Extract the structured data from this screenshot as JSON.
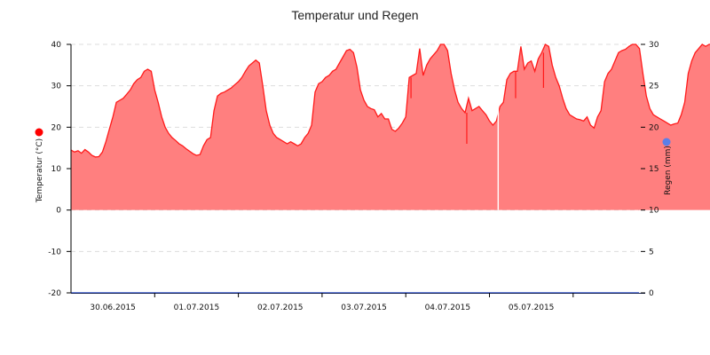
{
  "chart_data": {
    "type": "area",
    "title": "Temperatur und Regen",
    "xlabel": "",
    "x_tick_labels": [
      "30.06.2015",
      "01.07.2015",
      "02.07.2015",
      "03.07.2015",
      "04.07.2015",
      "05.07.2015"
    ],
    "y_left": {
      "label": "Temperatur (°C)",
      "ticks": [
        40,
        30,
        20,
        10,
        0,
        -10,
        -20
      ],
      "range": [
        -20,
        40
      ],
      "marker_color": "#ff0000"
    },
    "y_right": {
      "label": "Regen (mm)",
      "ticks": [
        30,
        25,
        20,
        15,
        10,
        5,
        0
      ],
      "range": [
        0,
        30
      ],
      "marker_color": "#5b7fe8"
    },
    "grid": true,
    "legend": "none",
    "series": [
      {
        "name": "Temperatur",
        "axis": "left",
        "type": "area",
        "line_color": "#ff1a1a",
        "fill_color": "#ff7f7f",
        "x_unit": "hours since 30.06.2015 00:00",
        "points": [
          [
            0,
            14.5
          ],
          [
            1,
            14.0
          ],
          [
            2,
            14.3
          ],
          [
            3,
            13.7
          ],
          [
            4,
            14.6
          ],
          [
            5,
            14.0
          ],
          [
            6,
            13.2
          ],
          [
            7,
            12.8
          ],
          [
            8,
            12.9
          ],
          [
            9,
            14.0
          ],
          [
            10,
            16.5
          ],
          [
            11,
            19.5
          ],
          [
            12,
            22.5
          ],
          [
            13,
            26.0
          ],
          [
            14,
            26.5
          ],
          [
            15,
            27.0
          ],
          [
            16,
            28.0
          ],
          [
            17,
            29.0
          ],
          [
            18,
            30.5
          ],
          [
            19,
            31.5
          ],
          [
            20,
            32.0
          ],
          [
            21,
            33.5
          ],
          [
            22,
            34.0
          ],
          [
            23,
            33.5
          ],
          [
            24,
            29.0
          ],
          [
            25,
            26.0
          ],
          [
            26,
            22.5
          ],
          [
            27,
            20.0
          ],
          [
            28,
            18.5
          ],
          [
            29,
            17.5
          ],
          [
            30,
            16.8
          ],
          [
            31,
            16.0
          ],
          [
            32,
            15.5
          ],
          [
            33,
            14.8
          ],
          [
            34,
            14.2
          ],
          [
            35,
            13.6
          ],
          [
            36,
            13.2
          ],
          [
            37,
            13.4
          ],
          [
            38,
            15.5
          ],
          [
            39,
            17.0
          ],
          [
            40,
            17.5
          ],
          [
            41,
            24.0
          ],
          [
            42,
            27.5
          ],
          [
            43,
            28.2
          ],
          [
            44,
            28.5
          ],
          [
            45,
            29.0
          ],
          [
            46,
            29.5
          ],
          [
            47,
            30.3
          ],
          [
            48,
            31.0
          ],
          [
            49,
            32.0
          ],
          [
            50,
            33.5
          ],
          [
            51,
            34.8
          ],
          [
            52,
            35.5
          ],
          [
            53,
            36.2
          ],
          [
            54,
            35.5
          ],
          [
            55,
            30.0
          ],
          [
            56,
            24.0
          ],
          [
            57,
            20.5
          ],
          [
            58,
            18.5
          ],
          [
            59,
            17.5
          ],
          [
            60,
            17.0
          ],
          [
            61,
            16.5
          ],
          [
            62,
            16.0
          ],
          [
            63,
            16.5
          ],
          [
            64,
            16.0
          ],
          [
            65,
            15.5
          ],
          [
            66,
            16.0
          ],
          [
            67,
            17.5
          ],
          [
            68,
            18.5
          ],
          [
            69,
            20.5
          ],
          [
            70,
            28.5
          ],
          [
            71,
            30.5
          ],
          [
            72,
            31.0
          ],
          [
            73,
            32.0
          ],
          [
            74,
            32.5
          ],
          [
            75,
            33.5
          ],
          [
            76,
            34.0
          ],
          [
            77,
            35.5
          ],
          [
            78,
            37.0
          ],
          [
            79,
            38.5
          ],
          [
            80,
            38.8
          ],
          [
            81,
            38.0
          ],
          [
            82,
            34.5
          ],
          [
            83,
            29.0
          ],
          [
            84,
            26.5
          ],
          [
            85,
            25.0
          ],
          [
            86,
            24.5
          ],
          [
            87,
            24.2
          ],
          [
            88,
            22.5
          ],
          [
            89,
            23.3
          ],
          [
            90,
            22.0
          ],
          [
            91,
            22.0
          ],
          [
            92,
            19.5
          ],
          [
            93,
            19.0
          ],
          [
            94,
            19.8
          ],
          [
            95,
            21.0
          ],
          [
            96,
            22.5
          ],
          [
            97,
            32.0
          ],
          [
            98,
            32.5
          ],
          [
            99,
            33.0
          ],
          [
            100,
            39.0
          ],
          [
            101,
            32.5
          ],
          [
            102,
            35.0
          ],
          [
            103,
            36.5
          ],
          [
            104,
            37.5
          ],
          [
            105,
            38.5
          ],
          [
            106,
            40.0
          ],
          [
            107,
            40.0
          ],
          [
            108,
            38.5
          ],
          [
            109,
            33.0
          ],
          [
            110,
            29.0
          ],
          [
            111,
            26.0
          ],
          [
            112,
            24.5
          ],
          [
            113,
            23.5
          ],
          [
            114,
            27.0
          ],
          [
            115,
            24.0
          ],
          [
            116,
            24.5
          ],
          [
            117,
            25.0
          ],
          [
            118,
            24.0
          ],
          [
            119,
            23.0
          ],
          [
            120,
            21.5
          ],
          [
            121,
            20.5
          ],
          [
            122,
            21.5
          ],
          [
            123,
            25.0
          ],
          [
            124,
            26.0
          ],
          [
            125,
            31.5
          ],
          [
            126,
            33.0
          ],
          [
            127,
            33.5
          ],
          [
            128,
            33.5
          ],
          [
            129,
            39.5
          ],
          [
            130,
            34.0
          ],
          [
            131,
            35.5
          ],
          [
            132,
            36.0
          ],
          [
            133,
            33.5
          ],
          [
            134,
            36.5
          ],
          [
            135,
            38.0
          ],
          [
            136,
            40.0
          ],
          [
            137,
            39.5
          ],
          [
            138,
            35.0
          ],
          [
            139,
            32.0
          ],
          [
            140,
            30.0
          ],
          [
            141,
            27.0
          ],
          [
            142,
            24.5
          ],
          [
            143,
            23.0
          ],
          [
            144,
            22.5
          ],
          [
            145,
            22.0
          ],
          [
            146,
            21.8
          ],
          [
            147,
            21.5
          ],
          [
            148,
            22.5
          ],
          [
            149,
            20.5
          ],
          [
            150,
            19.8
          ],
          [
            151,
            22.5
          ],
          [
            152,
            24.0
          ],
          [
            153,
            31.0
          ],
          [
            154,
            33.0
          ],
          [
            155,
            34.0
          ],
          [
            156,
            36.0
          ],
          [
            157,
            38.0
          ],
          [
            158,
            38.5
          ],
          [
            159,
            38.8
          ],
          [
            160,
            39.5
          ],
          [
            161,
            40.0
          ],
          [
            162,
            40.0
          ],
          [
            163,
            39.0
          ],
          [
            164,
            33.0
          ],
          [
            165,
            27.5
          ],
          [
            166,
            24.5
          ],
          [
            167,
            23.0
          ],
          [
            168,
            22.5
          ],
          [
            169,
            22.0
          ],
          [
            170,
            21.5
          ],
          [
            171,
            21.0
          ],
          [
            172,
            20.5
          ],
          [
            173,
            20.8
          ],
          [
            174,
            21.0
          ],
          [
            175,
            23.0
          ],
          [
            176,
            26.0
          ],
          [
            177,
            33.0
          ],
          [
            178,
            36.0
          ],
          [
            179,
            38.0
          ],
          [
            180,
            39.0
          ],
          [
            181,
            40.0
          ],
          [
            182,
            39.5
          ],
          [
            183,
            40.0
          ],
          [
            184,
            40.0
          ],
          [
            185,
            38.0
          ],
          [
            186,
            35.0
          ],
          [
            187,
            31.0
          ],
          [
            187.5,
            30.8
          ]
        ],
        "spikes_down": [
          [
            97.5,
            27.0
          ],
          [
            113.5,
            16.0
          ],
          [
            127.5,
            27.0
          ],
          [
            135.5,
            29.5
          ]
        ],
        "gaps": [
          [
            122.5
          ]
        ]
      },
      {
        "name": "Regen",
        "axis": "right",
        "type": "line",
        "line_color": "#3355cc",
        "values_note": "flat at 0 mm over entire period",
        "points": [
          [
            0,
            0
          ],
          [
            187.5,
            0
          ]
        ]
      }
    ]
  }
}
